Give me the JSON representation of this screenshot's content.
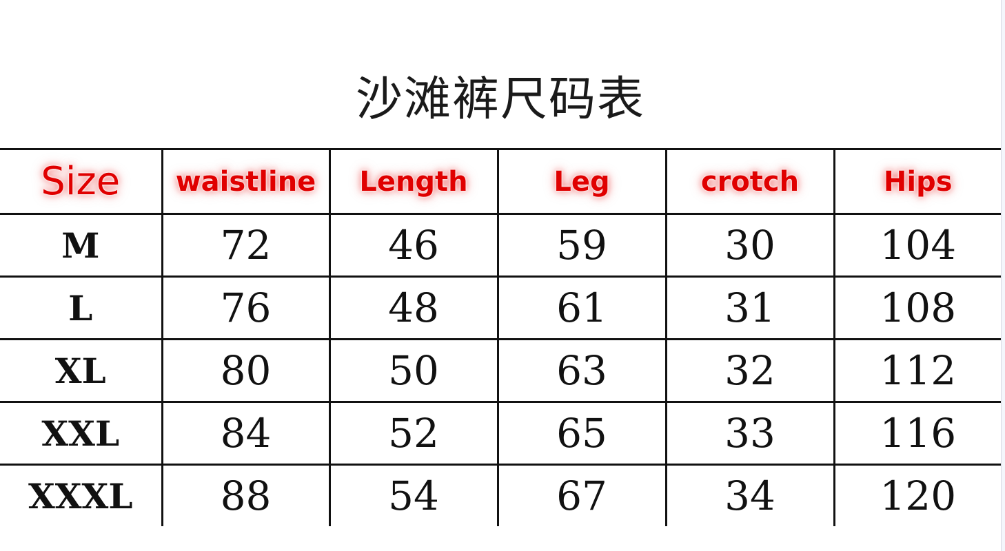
{
  "title": "沙滩裤尺码表",
  "colors": {
    "header_text": "#e00000",
    "grid": "#111111"
  },
  "table": {
    "headers": [
      "Size",
      "waistline",
      "Length",
      "Leg",
      "crotch",
      "Hips"
    ],
    "rows": [
      [
        "M",
        "72",
        "46",
        "59",
        "30",
        "104"
      ],
      [
        "L",
        "76",
        "48",
        "61",
        "31",
        "108"
      ],
      [
        "XL",
        "80",
        "50",
        "63",
        "32",
        "112"
      ],
      [
        "XXL",
        "84",
        "52",
        "65",
        "33",
        "116"
      ],
      [
        "XXXL",
        "88",
        "54",
        "67",
        "34",
        "120"
      ]
    ]
  }
}
